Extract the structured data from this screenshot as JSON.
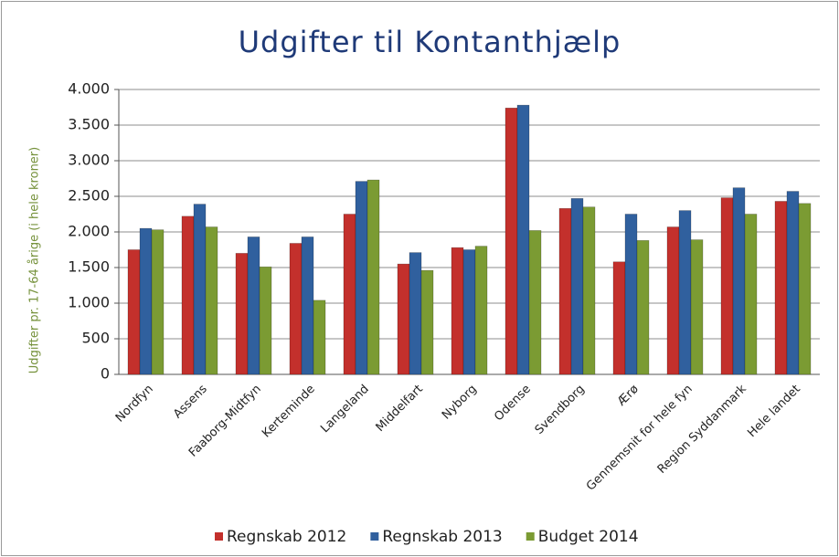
{
  "chart_data": {
    "type": "bar",
    "title": "Udgifter til Kontanthjælp",
    "y_label": "Udgifter pr. 17-64 årige (i hele kroner)",
    "categories": [
      "Nordfyn",
      "Assens",
      "Faaborg-Midtfyn",
      "Kerteminde",
      "Langeland",
      "Middelfart",
      "Nyborg",
      "Odense",
      "Svendborg",
      "Ærø",
      "Gennemsnit for hele fyn",
      "Region Syddanmark",
      "Hele landet"
    ],
    "series": [
      {
        "name": "Regnskab 2012",
        "color": "#c3302c",
        "values": [
          1750,
          2220,
          1700,
          1840,
          2250,
          1550,
          1780,
          3740,
          2330,
          1580,
          2070,
          2480,
          2430
        ]
      },
      {
        "name": "Regnskab 2013",
        "color": "#30609e",
        "values": [
          2050,
          2390,
          1930,
          1930,
          2710,
          1710,
          1750,
          3780,
          2470,
          2250,
          2300,
          2620,
          2570
        ]
      },
      {
        "name": "Budget 2014",
        "color": "#7b9b33",
        "values": [
          2030,
          2070,
          1510,
          1040,
          2730,
          1460,
          1800,
          2020,
          2350,
          1880,
          1890,
          2250,
          2400
        ]
      }
    ],
    "ylim": [
      0,
      4000
    ],
    "yticks": [
      0,
      500,
      {
        "value": 1000,
        "label": "1.000"
      },
      {
        "value": 1500,
        "label": "1.500"
      },
      {
        "value": 2000,
        "label": "2.000"
      },
      {
        "value": 2500,
        "label": "2.500"
      },
      {
        "value": 3000,
        "label": "3.000"
      },
      {
        "value": 3500,
        "label": "3.500"
      },
      {
        "value": 4000,
        "label": "4.000"
      }
    ],
    "grid": true,
    "legend": "bottom"
  }
}
